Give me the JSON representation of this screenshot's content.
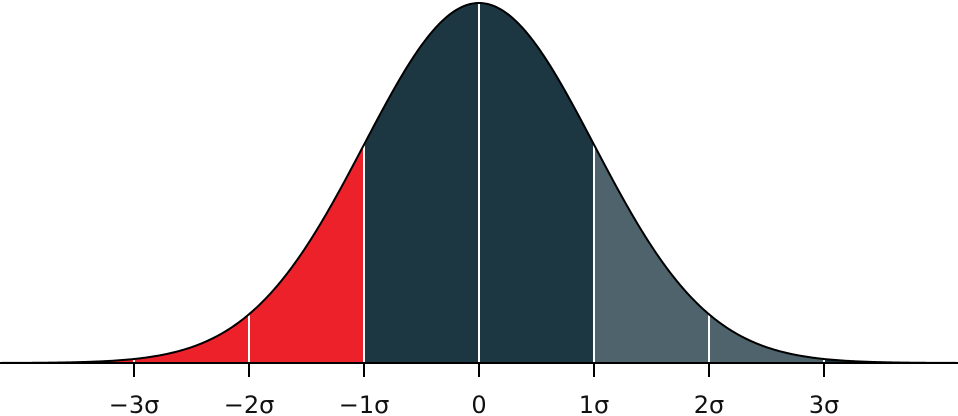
{
  "chart_data": {
    "type": "area",
    "distribution": "normal",
    "mean": 0,
    "sd": 1,
    "xlim": [
      -4.17,
      4.17
    ],
    "tick_values": [
      -3,
      -2,
      -1,
      0,
      1,
      2,
      3
    ],
    "tick_labels": [
      "−3σ",
      "−2σ",
      "−1σ",
      "0",
      "1σ",
      "2σ",
      "3σ"
    ],
    "divider_lines": [
      -3,
      -2,
      -1,
      0,
      1,
      2,
      3
    ],
    "regions": [
      {
        "from": -4.17,
        "to": -1,
        "color": "#ED2129"
      },
      {
        "from": -1,
        "to": 1,
        "color": "#1C3642"
      },
      {
        "from": 1,
        "to": 3,
        "color": "#4E636C"
      },
      {
        "from": 3,
        "to": 4.17,
        "color": "#1C3642"
      }
    ],
    "grid": false,
    "legend": "none"
  }
}
